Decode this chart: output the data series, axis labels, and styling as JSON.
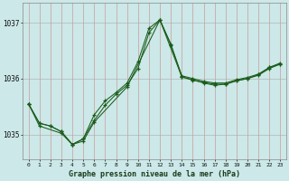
{
  "title": "Graphe pression niveau de la mer (hPa)",
  "background_color": "#cce8e8",
  "line_color": "#1a5c1a",
  "xlim": [
    -0.5,
    23.5
  ],
  "ylim": [
    1034.55,
    1037.35
  ],
  "yticks": [
    1035,
    1036,
    1037
  ],
  "xticks": [
    0,
    1,
    2,
    3,
    4,
    5,
    6,
    7,
    8,
    9,
    10,
    11,
    12,
    13,
    14,
    15,
    16,
    17,
    18,
    19,
    20,
    21,
    22,
    23
  ],
  "line1": {
    "x": [
      0,
      1,
      2,
      3,
      4,
      5,
      6,
      7,
      8,
      9,
      10,
      11,
      12,
      13,
      14,
      15,
      16,
      17,
      18,
      19,
      20,
      21,
      22,
      23
    ],
    "y": [
      1035.55,
      1035.2,
      1035.15,
      1035.05,
      1034.82,
      1034.92,
      1035.35,
      1035.6,
      1035.75,
      1035.92,
      1036.3,
      1036.9,
      1037.05,
      1036.6,
      1036.05,
      1036.0,
      1035.95,
      1035.92,
      1035.92,
      1035.98,
      1036.02,
      1036.08,
      1036.2,
      1036.28
    ]
  },
  "line2": {
    "x": [
      0,
      1,
      2,
      3,
      4,
      5,
      6,
      7,
      8,
      9,
      10,
      11,
      12,
      13,
      14,
      15,
      16,
      17,
      18,
      19,
      20,
      21,
      22,
      23
    ],
    "y": [
      1035.55,
      1035.2,
      1035.15,
      1035.05,
      1034.82,
      1034.92,
      1035.25,
      1035.52,
      1035.72,
      1035.88,
      1036.18,
      1036.82,
      1037.05,
      1036.62,
      1036.03,
      1035.98,
      1035.92,
      1035.88,
      1035.9,
      1035.96,
      1036.0,
      1036.06,
      1036.18,
      1036.26
    ]
  },
  "line3": {
    "x": [
      0,
      1,
      3,
      4,
      5,
      6,
      9,
      12,
      14,
      15,
      16,
      17,
      18,
      19,
      20,
      21,
      22,
      23
    ],
    "y": [
      1035.55,
      1035.15,
      1035.02,
      1034.82,
      1034.88,
      1035.22,
      1035.85,
      1037.05,
      1036.03,
      1035.97,
      1035.93,
      1035.9,
      1035.9,
      1035.96,
      1036.0,
      1036.07,
      1036.2,
      1036.26
    ]
  }
}
